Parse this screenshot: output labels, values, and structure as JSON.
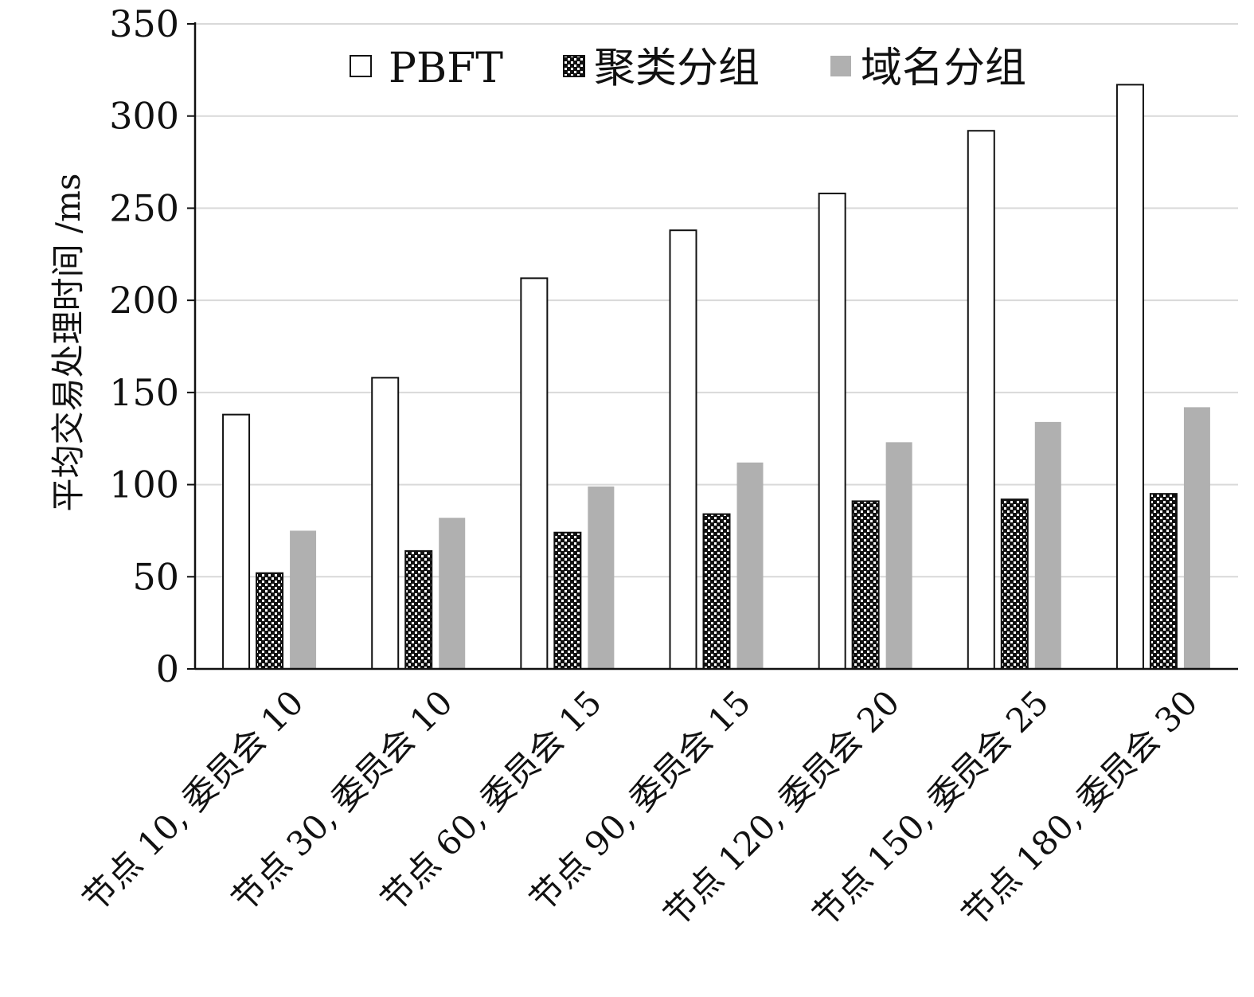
{
  "chart_data": {
    "type": "bar",
    "title": "",
    "xlabel": "",
    "ylabel": "平均交易处理时间 /ms",
    "ylim": [
      0,
      350
    ],
    "yticks": [
      0,
      50,
      100,
      150,
      200,
      250,
      300,
      350
    ],
    "grid": true,
    "legend_position": "top",
    "categories": [
      "节点 10, 委员会 10",
      "节点 30, 委员会 10",
      "节点 60, 委员会 15",
      "节点 90, 委员会 15",
      "节点 120, 委员会 20",
      "节点 150, 委员会 25",
      "节点 180, 委员会 30"
    ],
    "series": [
      {
        "name": "PBFT",
        "style": "white-outline",
        "color": "#ffffff",
        "values": [
          138,
          158,
          212,
          238,
          258,
          292,
          317
        ]
      },
      {
        "name": "聚类分组",
        "style": "checkered",
        "color": "#111111",
        "values": [
          52,
          64,
          74,
          84,
          91,
          92,
          95
        ]
      },
      {
        "name": "域名分组",
        "style": "gray-fill",
        "color": "#b0b0b0",
        "values": [
          75,
          82,
          99,
          112,
          123,
          134,
          142
        ]
      }
    ]
  }
}
